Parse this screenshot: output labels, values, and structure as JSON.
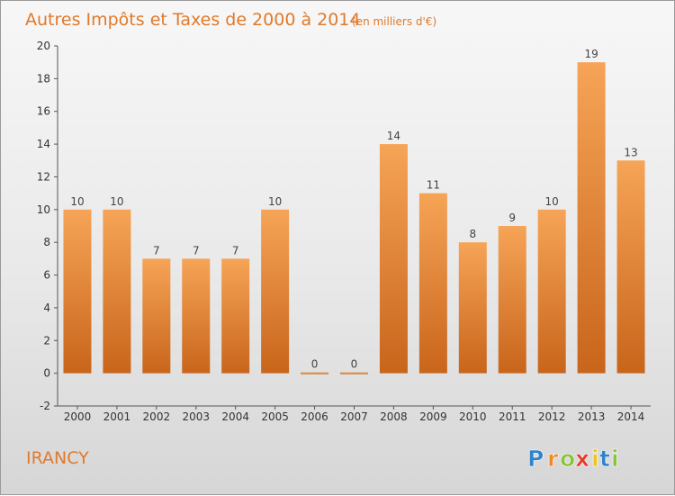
{
  "chart_data": {
    "type": "bar",
    "title": "Autres Impôts et Taxes de 2000 à 2014",
    "subtitle": "(en milliers d'€)",
    "categories": [
      "2000",
      "2001",
      "2002",
      "2003",
      "2004",
      "2005",
      "2006",
      "2007",
      "2008",
      "2009",
      "2010",
      "2011",
      "2012",
      "2013",
      "2014"
    ],
    "values": [
      10,
      10,
      7,
      7,
      7,
      10,
      0,
      0,
      14,
      11,
      8,
      9,
      10,
      19,
      13
    ],
    "ylim": [
      -2,
      20
    ],
    "yticks": [
      -2,
      0,
      2,
      4,
      6,
      8,
      10,
      12,
      14,
      16,
      18,
      20
    ],
    "grid": false,
    "legend": "none",
    "bar_color": "#f0913a"
  },
  "footer": {
    "commune": "IRANCY",
    "logo": {
      "letters": [
        "P",
        "r",
        "o",
        "x",
        "i",
        "t",
        "i"
      ],
      "colors": [
        "#2f84c9",
        "#f08a24",
        "#8bc23b",
        "#e63b2a",
        "#f2c21b",
        "#2f84c9",
        "#8bc23b"
      ]
    }
  }
}
